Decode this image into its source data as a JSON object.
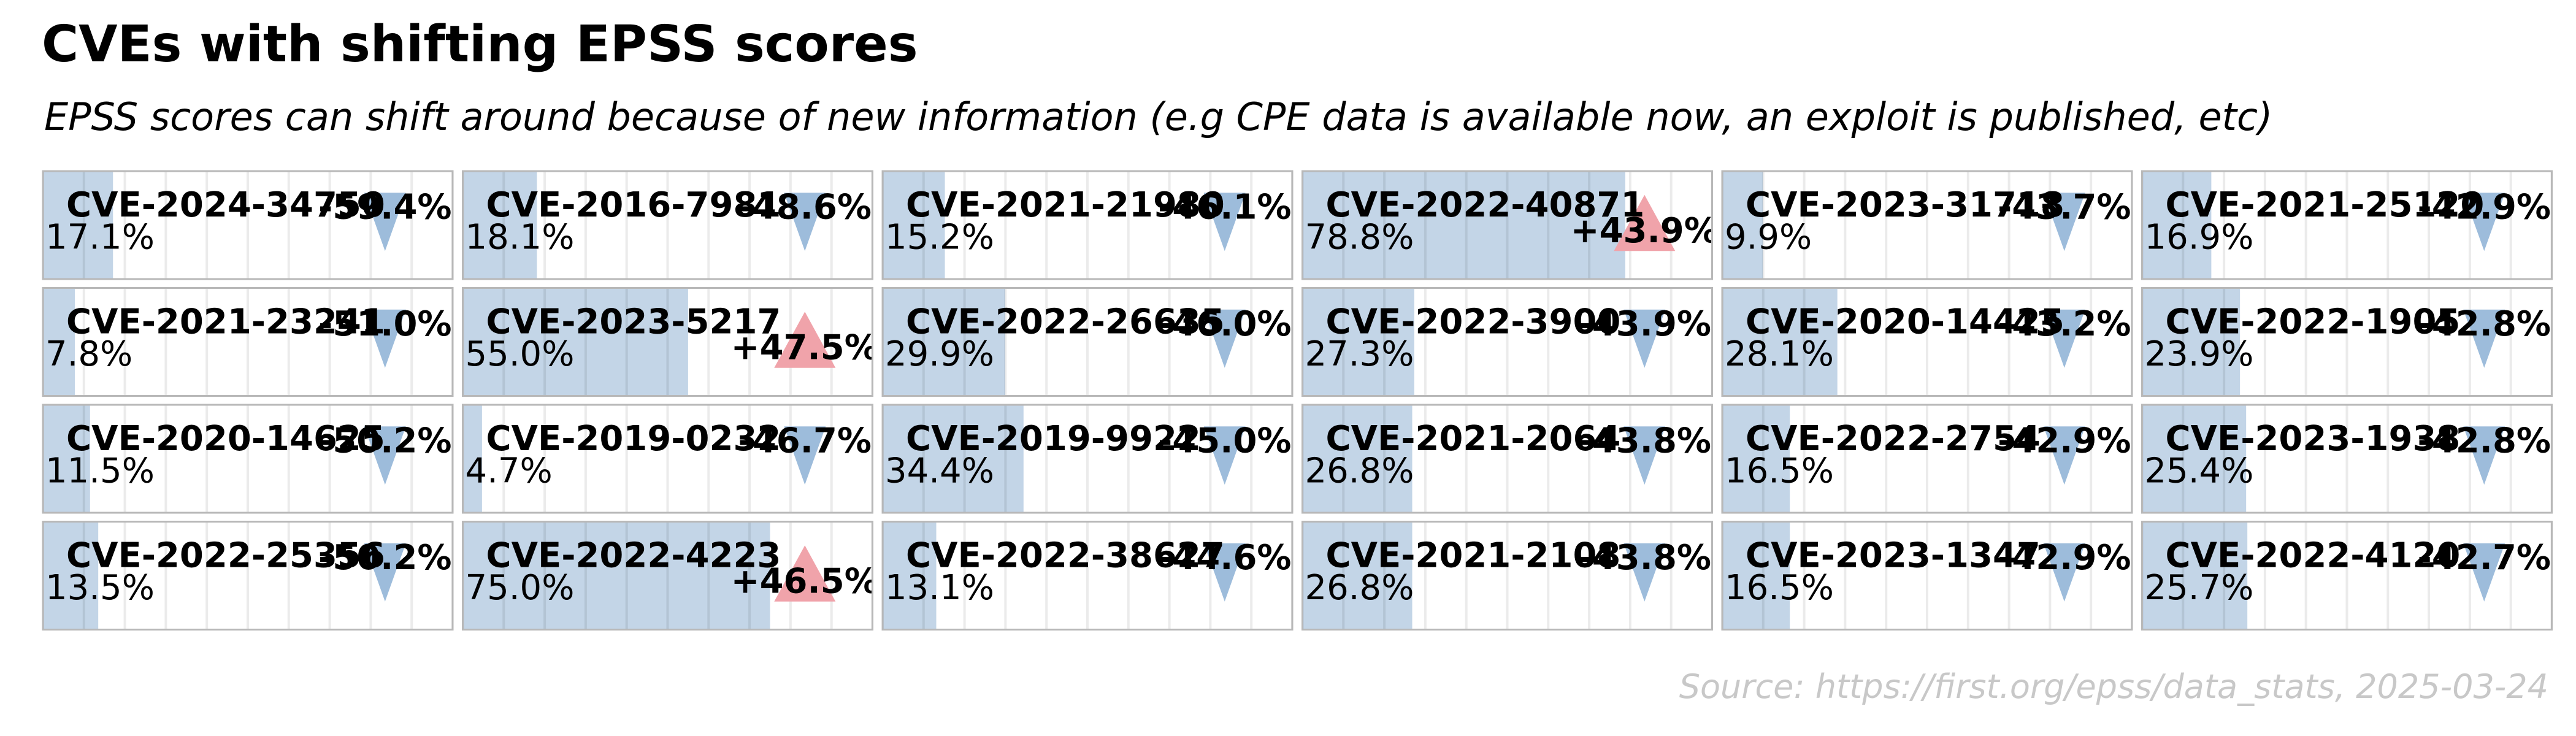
{
  "title": "CVEs with shifting EPSS scores",
  "subtitle": "EPSS scores can shift around because of new information (e.g CPE data is available now, an exploit is published, etc)",
  "source": "Source: https://first.org/epss/data_stats, 2025-03-24",
  "xlim": [
    0,
    100
  ],
  "xticks": [
    0,
    10,
    20,
    30,
    40,
    50,
    60,
    70,
    80,
    90,
    100
  ],
  "grid": true,
  "colors": {
    "bar": "#c3d5e7",
    "up": "#f0a3aa",
    "down": "#9dbcdb"
  },
  "panels": [
    {
      "cve": "CVE-2024-34750",
      "epss": 17.1,
      "epss_label": "17.1%",
      "change": -59.4,
      "change_label": "-59.4%"
    },
    {
      "cve": "CVE-2016-7981",
      "epss": 18.1,
      "epss_label": "18.1%",
      "change": -48.6,
      "change_label": "-48.6%"
    },
    {
      "cve": "CVE-2021-21980",
      "epss": 15.2,
      "epss_label": "15.2%",
      "change": -46.1,
      "change_label": "-46.1%"
    },
    {
      "cve": "CVE-2022-40871",
      "epss": 78.8,
      "epss_label": "78.8%",
      "change": 43.9,
      "change_label": "+43.9%"
    },
    {
      "cve": "CVE-2023-31718",
      "epss": 9.9,
      "epss_label": "9.9%",
      "change": -43.7,
      "change_label": "-43.7%"
    },
    {
      "cve": "CVE-2021-25120",
      "epss": 16.9,
      "epss_label": "16.9%",
      "change": -42.9,
      "change_label": "-42.9%"
    },
    {
      "cve": "CVE-2021-23241",
      "epss": 7.8,
      "epss_label": "7.8%",
      "change": -51.0,
      "change_label": "-51.0%"
    },
    {
      "cve": "CVE-2023-5217",
      "epss": 55.0,
      "epss_label": "55.0%",
      "change": 47.5,
      "change_label": "+47.5%"
    },
    {
      "cve": "CVE-2022-26635",
      "epss": 29.9,
      "epss_label": "29.9%",
      "change": -46.0,
      "change_label": "-46.0%"
    },
    {
      "cve": "CVE-2022-3900",
      "epss": 27.3,
      "epss_label": "27.3%",
      "change": -43.9,
      "change_label": "-43.9%"
    },
    {
      "cve": "CVE-2020-14425",
      "epss": 28.1,
      "epss_label": "28.1%",
      "change": -43.2,
      "change_label": "-43.2%"
    },
    {
      "cve": "CVE-2022-1905",
      "epss": 23.9,
      "epss_label": "23.9%",
      "change": -42.8,
      "change_label": "-42.8%"
    },
    {
      "cve": "CVE-2020-14625",
      "epss": 11.5,
      "epss_label": "11.5%",
      "change": -50.2,
      "change_label": "-50.2%"
    },
    {
      "cve": "CVE-2019-0232",
      "epss": 4.7,
      "epss_label": "4.7%",
      "change": -46.7,
      "change_label": "-46.7%"
    },
    {
      "cve": "CVE-2019-9922",
      "epss": 34.4,
      "epss_label": "34.4%",
      "change": -45.0,
      "change_label": "-45.0%"
    },
    {
      "cve": "CVE-2021-2064",
      "epss": 26.8,
      "epss_label": "26.8%",
      "change": -43.8,
      "change_label": "-43.8%"
    },
    {
      "cve": "CVE-2022-2754",
      "epss": 16.5,
      "epss_label": "16.5%",
      "change": -42.9,
      "change_label": "-42.9%"
    },
    {
      "cve": "CVE-2023-1938",
      "epss": 25.4,
      "epss_label": "25.4%",
      "change": -42.8,
      "change_label": "-42.8%"
    },
    {
      "cve": "CVE-2022-25356",
      "epss": 13.5,
      "epss_label": "13.5%",
      "change": -50.2,
      "change_label": "-50.2%"
    },
    {
      "cve": "CVE-2022-4223",
      "epss": 75.0,
      "epss_label": "75.0%",
      "change": 46.5,
      "change_label": "+46.5%"
    },
    {
      "cve": "CVE-2022-38627",
      "epss": 13.1,
      "epss_label": "13.1%",
      "change": -44.6,
      "change_label": "-44.6%"
    },
    {
      "cve": "CVE-2021-2108",
      "epss": 26.8,
      "epss_label": "26.8%",
      "change": -43.8,
      "change_label": "-43.8%"
    },
    {
      "cve": "CVE-2023-1347",
      "epss": 16.5,
      "epss_label": "16.5%",
      "change": -42.9,
      "change_label": "-42.9%"
    },
    {
      "cve": "CVE-2022-4120",
      "epss": 25.7,
      "epss_label": "25.7%",
      "change": -42.7,
      "change_label": "-42.7%"
    }
  ]
}
